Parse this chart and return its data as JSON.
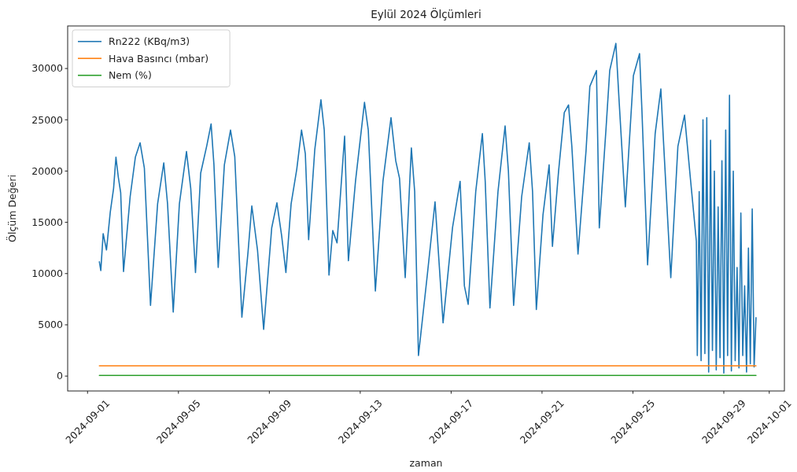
{
  "chart_data": {
    "type": "line",
    "title": "Eylül 2024 Ölçümleri",
    "xlabel": "zaman",
    "ylabel": "Ölçüm Değeri",
    "xlim": [
      "2024-08-31T03:00",
      "2024-10-01T16:00"
    ],
    "xticks": [
      "2024-09-01",
      "2024-09-05",
      "2024-09-09",
      "2024-09-13",
      "2024-09-17",
      "2024-09-21",
      "2024-09-25",
      "2024-09-29",
      "2024-10-01"
    ],
    "ylim": [
      -1450,
      34150
    ],
    "yticks": [
      0,
      5000,
      10000,
      15000,
      20000,
      25000,
      30000
    ],
    "legend": "top left",
    "series": [
      {
        "name": "Rn222 (KBq/m3)",
        "color": "#1f77b4",
        "x": [
          "2024-09-01T12:30",
          "2024-09-01T14:00",
          "2024-09-01T16:30",
          "2024-09-01T20:00",
          "2024-09-02T00:00",
          "2024-09-02T03:30",
          "2024-09-02T06:00",
          "2024-09-02T08:30",
          "2024-09-02T11:00",
          "2024-09-02T14:00",
          "2024-09-02T21:00",
          "2024-09-03T02:30",
          "2024-09-03T07:30",
          "2024-09-03T12:00",
          "2024-09-03T18:30",
          "2024-09-04T02:00",
          "2024-09-04T08:30",
          "2024-09-04T12:30",
          "2024-09-04T18:30",
          "2024-09-05T01:00",
          "2024-09-05T08:30",
          "2024-09-05T13:00",
          "2024-09-05T18:00",
          "2024-09-05T23:30",
          "2024-09-06T06:00",
          "2024-09-06T10:30",
          "2024-09-06T13:30",
          "2024-09-06T18:00",
          "2024-09-07T00:30",
          "2024-09-07T07:00",
          "2024-09-07T11:30",
          "2024-09-07T19:00",
          "2024-09-08T01:30",
          "2024-09-08T05:30",
          "2024-09-08T11:30",
          "2024-09-08T18:00",
          "2024-09-09T02:30",
          "2024-09-09T08:00",
          "2024-09-09T13:00",
          "2024-09-09T17:30",
          "2024-09-09T23:00",
          "2024-09-10T05:00",
          "2024-09-10T10:00",
          "2024-09-10T14:00",
          "2024-09-10T17:30",
          "2024-09-11T00:00",
          "2024-09-11T06:30",
          "2024-09-11T10:00",
          "2024-09-11T15:00",
          "2024-09-11T19:00",
          "2024-09-11T23:30",
          "2024-09-12T07:30",
          "2024-09-12T11:30",
          "2024-09-12T19:00",
          "2024-09-13T04:30",
          "2024-09-13T08:30",
          "2024-09-13T16:00",
          "2024-09-14T00:00",
          "2024-09-14T08:30",
          "2024-09-14T13:30",
          "2024-09-14T17:30",
          "2024-09-14T23:30",
          "2024-09-15T06:00",
          "2024-09-15T09:30",
          "2024-09-15T13:30",
          "2024-09-15T23:00",
          "2024-09-16T07:00",
          "2024-09-16T15:30",
          "2024-09-17T01:30",
          "2024-09-17T09:30",
          "2024-09-17T14:00",
          "2024-09-17T18:00",
          "2024-09-18T02:00",
          "2024-09-18T09:00",
          "2024-09-18T12:00",
          "2024-09-18T17:00",
          "2024-09-19T01:30",
          "2024-09-19T09:00",
          "2024-09-19T12:30",
          "2024-09-19T18:00",
          "2024-09-20T02:30",
          "2024-09-20T10:30",
          "2024-09-20T14:00",
          "2024-09-20T18:00",
          "2024-09-21T01:00",
          "2024-09-21T07:30",
          "2024-09-21T11:00",
          "2024-09-21T17:30",
          "2024-09-21T23:30",
          "2024-09-22T04:00",
          "2024-09-22T07:30",
          "2024-09-22T14:00",
          "2024-09-22T22:30",
          "2024-09-23T02:30",
          "2024-09-23T09:30",
          "2024-09-23T12:30",
          "2024-09-23T19:30",
          "2024-09-23T23:30",
          "2024-09-24T06:00",
          "2024-09-24T09:30",
          "2024-09-24T16:00",
          "2024-09-25T00:30",
          "2024-09-25T07:00",
          "2024-09-25T09:30",
          "2024-09-25T15:30",
          "2024-09-25T23:30",
          "2024-09-26T05:30",
          "2024-09-26T08:00",
          "2024-09-26T16:00",
          "2024-09-26T23:30",
          "2024-09-27T06:30",
          "2024-09-27T13:00",
          "2024-09-27T19:00",
          "2024-09-27T20:00",
          "2024-09-27T22:00",
          "2024-09-28T00:00",
          "2024-09-28T02:00",
          "2024-09-28T04:00",
          "2024-09-28T06:00",
          "2024-09-28T08:00",
          "2024-09-28T10:00",
          "2024-09-28T12:00",
          "2024-09-28T14:00",
          "2024-09-28T16:00",
          "2024-09-28T18:00",
          "2024-09-28T20:00",
          "2024-09-28T22:00",
          "2024-09-29T00:00",
          "2024-09-29T02:00",
          "2024-09-29T04:00",
          "2024-09-29T06:00",
          "2024-09-29T08:00",
          "2024-09-29T10:00",
          "2024-09-29T12:00",
          "2024-09-29T14:00",
          "2024-09-29T16:00",
          "2024-09-29T18:00",
          "2024-09-29T20:00",
          "2024-09-29T22:00",
          "2024-09-30T00:00",
          "2024-09-30T02:00",
          "2024-09-30T04:00",
          "2024-09-30T06:00",
          "2024-09-30T08:00",
          "2024-09-30T10:00"
        ],
        "values": [
          11150,
          10300,
          13900,
          12300,
          16000,
          18300,
          21350,
          19400,
          17900,
          10200,
          17500,
          21350,
          22750,
          20300,
          6900,
          16800,
          20800,
          16800,
          6250,
          16800,
          21900,
          18300,
          10100,
          19800,
          22500,
          24600,
          20600,
          10600,
          20600,
          24000,
          21400,
          5750,
          12100,
          16600,
          12300,
          4550,
          14450,
          16900,
          13700,
          10100,
          16800,
          20200,
          24000,
          21700,
          13300,
          22100,
          26950,
          24000,
          9850,
          14200,
          13000,
          23400,
          11250,
          19000,
          26700,
          24000,
          8300,
          19000,
          25200,
          21000,
          19300,
          9600,
          22250,
          18000,
          2000,
          10000,
          17000,
          5200,
          14500,
          19000,
          8800,
          7000,
          18000,
          23650,
          19000,
          6650,
          18000,
          24400,
          20000,
          6900,
          17500,
          22750,
          18000,
          6500,
          15700,
          20600,
          12650,
          20000,
          25700,
          26450,
          22400,
          11900,
          22000,
          28250,
          29800,
          14450,
          24000,
          29800,
          32450,
          26700,
          16500,
          29300,
          31450,
          25950,
          10850,
          23650,
          28000,
          23400,
          9600,
          22400,
          25450,
          19000,
          13150,
          2000,
          18000,
          1500,
          25000,
          2200,
          25200,
          400,
          23000,
          2500,
          20000,
          600,
          16500,
          1800,
          21000,
          300,
          24000,
          2000,
          27400,
          500,
          20000,
          1500,
          10600,
          800,
          15900,
          2000,
          8800,
          400,
          12500,
          1200,
          16300,
          900,
          5700
        ]
      },
      {
        "name": "Hava Basıncı (mbar)",
        "color": "#ff7f0e",
        "x": [
          "2024-09-01T12:30",
          "2024-09-30T10:00"
        ],
        "values": [
          1000,
          1000
        ]
      },
      {
        "name": "Nem (%)",
        "color": "#2ca02c",
        "x": [
          "2024-09-01T12:30",
          "2024-09-30T10:00"
        ],
        "values": [
          60,
          60
        ]
      }
    ]
  }
}
